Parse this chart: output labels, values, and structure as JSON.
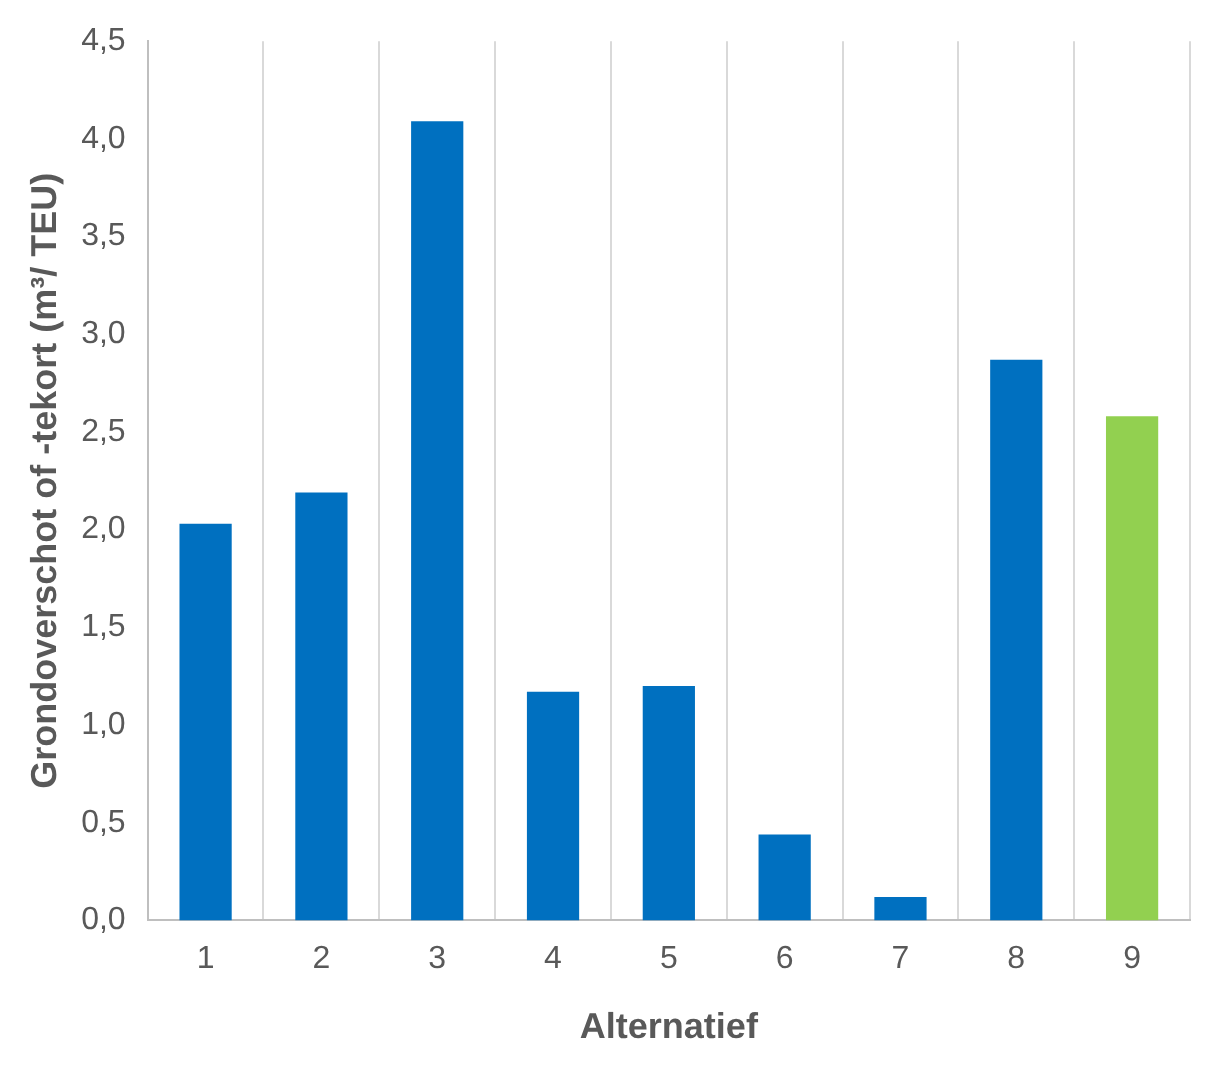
{
  "chart_data": {
    "type": "bar",
    "xlabel": "Alternatief",
    "ylabel": "Grondoverschot of -tekort (m³/ TEU)",
    "categories": [
      "1",
      "2",
      "3",
      "4",
      "5",
      "6",
      "7",
      "8",
      "9"
    ],
    "values": [
      2.03,
      2.19,
      4.09,
      1.17,
      1.2,
      0.44,
      0.12,
      2.87,
      2.58
    ],
    "colors": [
      "#0070c0",
      "#0070c0",
      "#0070c0",
      "#0070c0",
      "#0070c0",
      "#0070c0",
      "#0070c0",
      "#0070c0",
      "#92d050"
    ],
    "ylim": [
      0,
      4.5
    ],
    "yticks": [
      {
        "value": 0,
        "label": "0,0"
      },
      {
        "value": 0.5,
        "label": "0,5"
      },
      {
        "value": 1,
        "label": "1,0"
      },
      {
        "value": 1.5,
        "label": "1,5"
      },
      {
        "value": 2,
        "label": "2,0"
      },
      {
        "value": 2.5,
        "label": "2,5"
      },
      {
        "value": 3,
        "label": "3,0"
      },
      {
        "value": 3.5,
        "label": "3,5"
      },
      {
        "value": 4,
        "label": "4,0"
      },
      {
        "value": 4.5,
        "label": "4,5"
      }
    ],
    "grid": "x",
    "legend": false
  }
}
